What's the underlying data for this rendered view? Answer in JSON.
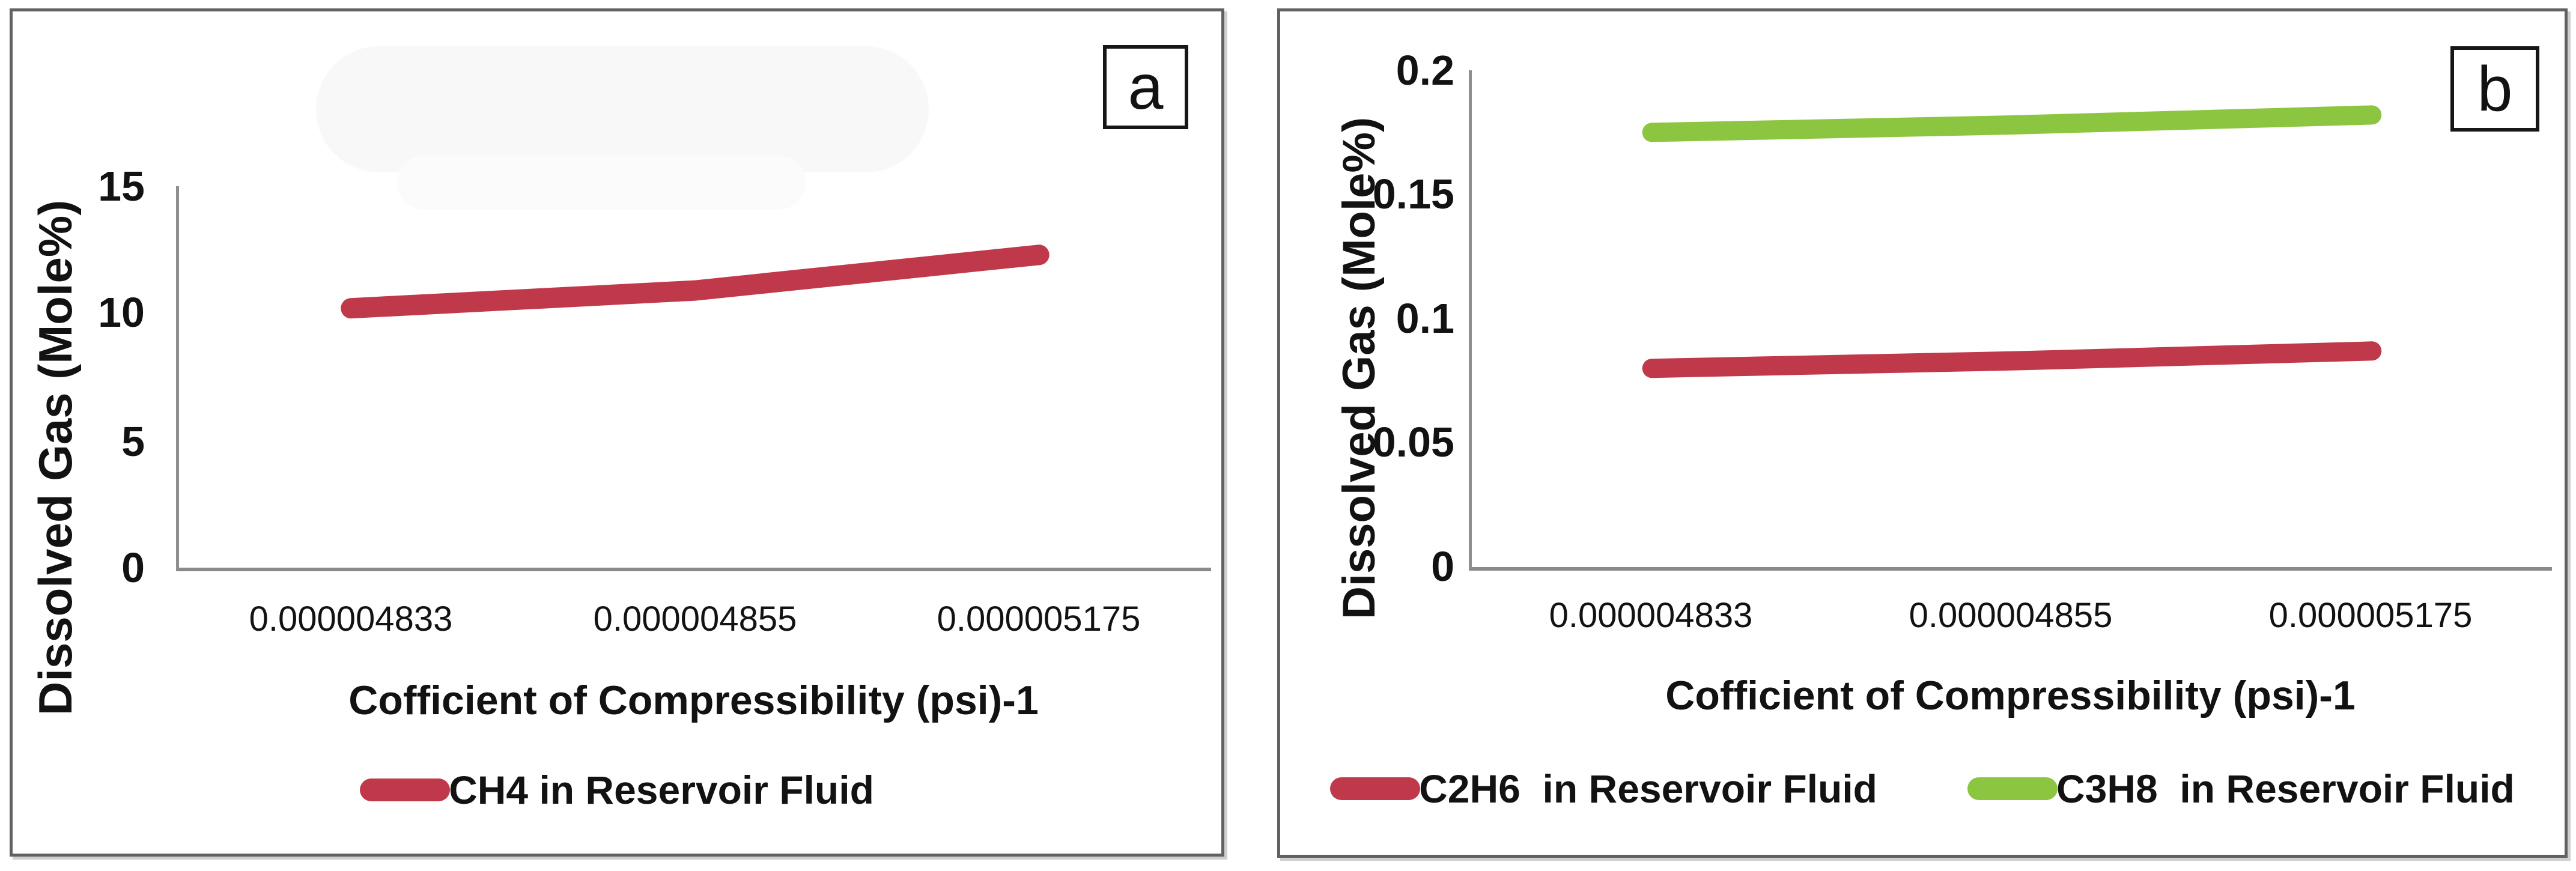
{
  "figure": {
    "panels": [
      {
        "tag": "a",
        "y_axis_title": "Dissolved Gas (Mole%)",
        "x_axis_title": "Cofficient of Compressibility (psi)-1",
        "y_tick_labels": [
          "15",
          "10",
          "5",
          "0"
        ],
        "x_tick_labels": [
          "0.000004833",
          "0.000004855",
          "0.000005175"
        ],
        "legend": [
          {
            "label": "CH4 in Reservoir Fluid",
            "color": "#c0394b"
          }
        ]
      },
      {
        "tag": "b",
        "y_axis_title": "Dissolved Gas (Mole%)",
        "x_axis_title": "Cofficient of Compressibility (psi)-1",
        "y_tick_labels": [
          "0.2",
          "0.15",
          "0.1",
          "0.05",
          "0"
        ],
        "x_tick_labels": [
          "0.000004833",
          "0.000004855",
          "0.000005175"
        ],
        "legend": [
          {
            "label": "C2H6  in Reservoir Fluid",
            "color": "#c0394b"
          },
          {
            "label": "C3H8  in Reservoir Fluid",
            "color": "#8cc540"
          }
        ]
      }
    ]
  },
  "chart_data": [
    {
      "type": "line",
      "panel": "a",
      "title": "",
      "categories": [
        4.833e-06,
        4.855e-06,
        5.175e-06
      ],
      "series": [
        {
          "name": "CH4 in Reservoir Fluid",
          "color": "#c0394b",
          "values": [
            10.2,
            10.9,
            12.3
          ]
        }
      ],
      "xlabel": "Cofficient of Compressibility (psi)-1",
      "ylabel": "Dissolved Gas (Mole%)",
      "ylim": [
        0,
        15
      ],
      "yticks": [
        0,
        5,
        10,
        15
      ],
      "grid": false,
      "legend_position": "bottom"
    },
    {
      "type": "line",
      "panel": "b",
      "title": "",
      "categories": [
        4.833e-06,
        4.855e-06,
        5.175e-06
      ],
      "series": [
        {
          "name": "C2H6  in Reservoir Fluid",
          "color": "#c0394b",
          "values": [
            0.08,
            0.083,
            0.087
          ]
        },
        {
          "name": "C3H8  in Reservoir Fluid",
          "color": "#8cc540",
          "values": [
            0.175,
            0.178,
            0.182
          ]
        }
      ],
      "xlabel": "Cofficient of Compressibility (psi)-1",
      "ylabel": "Dissolved Gas (Mole%)",
      "ylim": [
        0,
        0.2
      ],
      "yticks": [
        0,
        0.05,
        0.1,
        0.15,
        0.2
      ],
      "grid": false,
      "legend_position": "bottom"
    }
  ]
}
